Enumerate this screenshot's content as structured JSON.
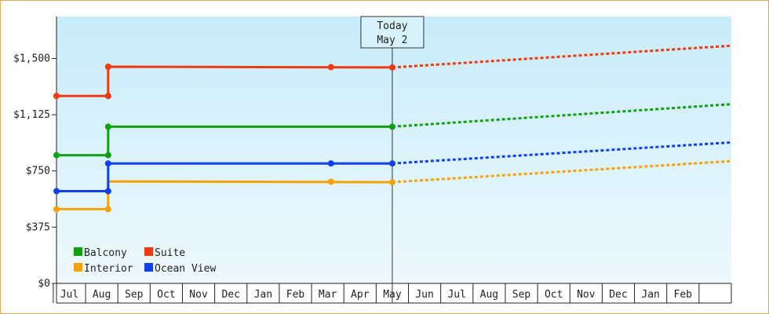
{
  "chart_data": {
    "type": "line",
    "title": "",
    "xlabel": "",
    "ylabel": "",
    "y_tick_labels": [
      "$0",
      "$375",
      "$750",
      "$1,125",
      "$1,500"
    ],
    "y_tick_values": [
      0,
      375,
      750,
      1125,
      1500
    ],
    "ylim": [
      0,
      1780
    ],
    "x_tick_labels": [
      "Jul",
      "Aug",
      "Sep",
      "Oct",
      "Nov",
      "Dec",
      "Jan",
      "Feb",
      "Mar",
      "Apr",
      "May",
      "Jun",
      "Jul",
      "Aug",
      "Sep",
      "Oct",
      "Nov",
      "Dec",
      "Jan",
      "Feb"
    ],
    "xlim": [
      -0.4,
      20.5
    ],
    "today": {
      "line1": "Today",
      "line2": "May 2",
      "x": 10
    },
    "grid": false,
    "legend_position": "bottom-left",
    "series": [
      {
        "name": "Balcony",
        "color": "#11a011",
        "points": [
          [
            -0.4,
            855
          ],
          [
            1.2,
            855
          ],
          [
            1.2,
            1045
          ],
          [
            10,
            1045
          ]
        ],
        "markers": [
          [
            -0.4,
            855
          ],
          [
            1.2,
            855
          ],
          [
            1.2,
            1045
          ],
          [
            10,
            1045
          ]
        ],
        "forecast": [
          [
            10,
            1045
          ],
          [
            20.5,
            1195
          ]
        ]
      },
      {
        "name": "Suite",
        "color": "#ee3a10",
        "points": [
          [
            -0.4,
            1250
          ],
          [
            1.2,
            1250
          ],
          [
            1.2,
            1445
          ],
          [
            10,
            1440
          ]
        ],
        "markers": [
          [
            -0.4,
            1250
          ],
          [
            1.2,
            1250
          ],
          [
            1.2,
            1445
          ],
          [
            8.1,
            1442
          ],
          [
            10,
            1440
          ]
        ],
        "forecast": [
          [
            10,
            1440
          ],
          [
            20.5,
            1585
          ]
        ]
      },
      {
        "name": "Interior",
        "color": "#f5a20a",
        "points": [
          [
            -0.4,
            495
          ],
          [
            1.2,
            495
          ],
          [
            1.2,
            680
          ],
          [
            10,
            675
          ]
        ],
        "markers": [
          [
            -0.4,
            495
          ],
          [
            1.2,
            495
          ],
          [
            8.1,
            678
          ],
          [
            10,
            675
          ]
        ],
        "forecast": [
          [
            10,
            675
          ],
          [
            20.5,
            815
          ]
        ]
      },
      {
        "name": "Ocean View",
        "color": "#1040ee",
        "points": [
          [
            -0.4,
            615
          ],
          [
            1.2,
            615
          ],
          [
            1.2,
            800
          ],
          [
            10,
            800
          ]
        ],
        "markers": [
          [
            -0.4,
            615
          ],
          [
            1.2,
            615
          ],
          [
            1.2,
            800
          ],
          [
            8.1,
            800
          ],
          [
            10,
            800
          ]
        ],
        "forecast": [
          [
            10,
            800
          ],
          [
            20.5,
            940
          ]
        ]
      }
    ],
    "legend_order": [
      "Balcony",
      "Suite",
      "Interior",
      "Ocean View"
    ]
  }
}
